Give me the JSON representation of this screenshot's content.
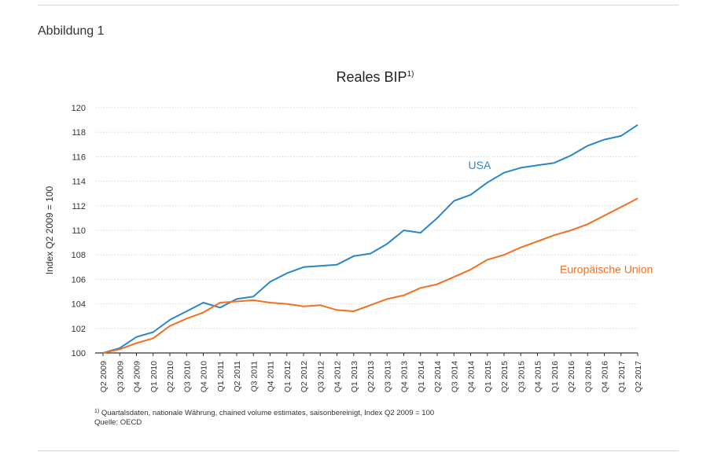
{
  "figure_label": "Abbildung 1",
  "footnote": {
    "marker": "1)",
    "text": "Quartalsdaten, nationale Währung, chained volume estimates, saisonbereinigt, Index Q2 2009 = 100",
    "source": "Quelle: OECD"
  },
  "colors": {
    "usa": "#2a86c9",
    "eu": "#f37021",
    "grid": "#d8d8d8",
    "axis": "#333333"
  },
  "chart_data": {
    "type": "line",
    "title": "Reales BIP",
    "title_superscript": "1)",
    "xlabel": "",
    "ylabel": "Index Q2 2009 = 100",
    "ylim": [
      100,
      120
    ],
    "yticks": [
      100,
      102,
      104,
      106,
      108,
      110,
      112,
      114,
      116,
      118,
      120
    ],
    "grid": true,
    "categories": [
      "Q2 2009",
      "Q3 2009",
      "Q4 2009",
      "Q1 2010",
      "Q2 2010",
      "Q3 2010",
      "Q4 2010",
      "Q1 2011",
      "Q2 2011",
      "Q3 2011",
      "Q4 2011",
      "Q1 2012",
      "Q2 2012",
      "Q3 2012",
      "Q4 2012",
      "Q1 2013",
      "Q2 2013",
      "Q3 2013",
      "Q4 2013",
      "Q1 2014",
      "Q2 2014",
      "Q3 2014",
      "Q4 2014",
      "Q1 2015",
      "Q2 2015",
      "Q3 2015",
      "Q4 2015",
      "Q1 2016",
      "Q2 2016",
      "Q3 2016",
      "Q4 2016",
      "Q1 2017",
      "Q2 2017"
    ],
    "series": [
      {
        "name": "USA",
        "color": "#2a86c9",
        "values": [
          100.0,
          100.4,
          101.3,
          101.7,
          102.7,
          103.4,
          104.1,
          103.7,
          104.4,
          104.6,
          105.8,
          106.5,
          107.0,
          107.1,
          107.2,
          107.9,
          108.1,
          108.9,
          110.0,
          109.8,
          111.0,
          112.4,
          112.9,
          113.9,
          114.7,
          115.1,
          115.3,
          115.5,
          116.1,
          116.9,
          117.4,
          117.7,
          118.6
        ]
      },
      {
        "name": "Europäische Union",
        "color": "#f37021",
        "values": [
          100.0,
          100.3,
          100.8,
          101.2,
          102.2,
          102.8,
          103.3,
          104.1,
          104.2,
          104.3,
          104.1,
          104.0,
          103.8,
          103.9,
          103.5,
          103.4,
          103.9,
          104.4,
          104.7,
          105.3,
          105.6,
          106.2,
          106.8,
          107.6,
          108.0,
          108.6,
          109.1,
          109.6,
          110.0,
          110.5,
          111.2,
          111.9,
          112.6
        ]
      }
    ]
  }
}
